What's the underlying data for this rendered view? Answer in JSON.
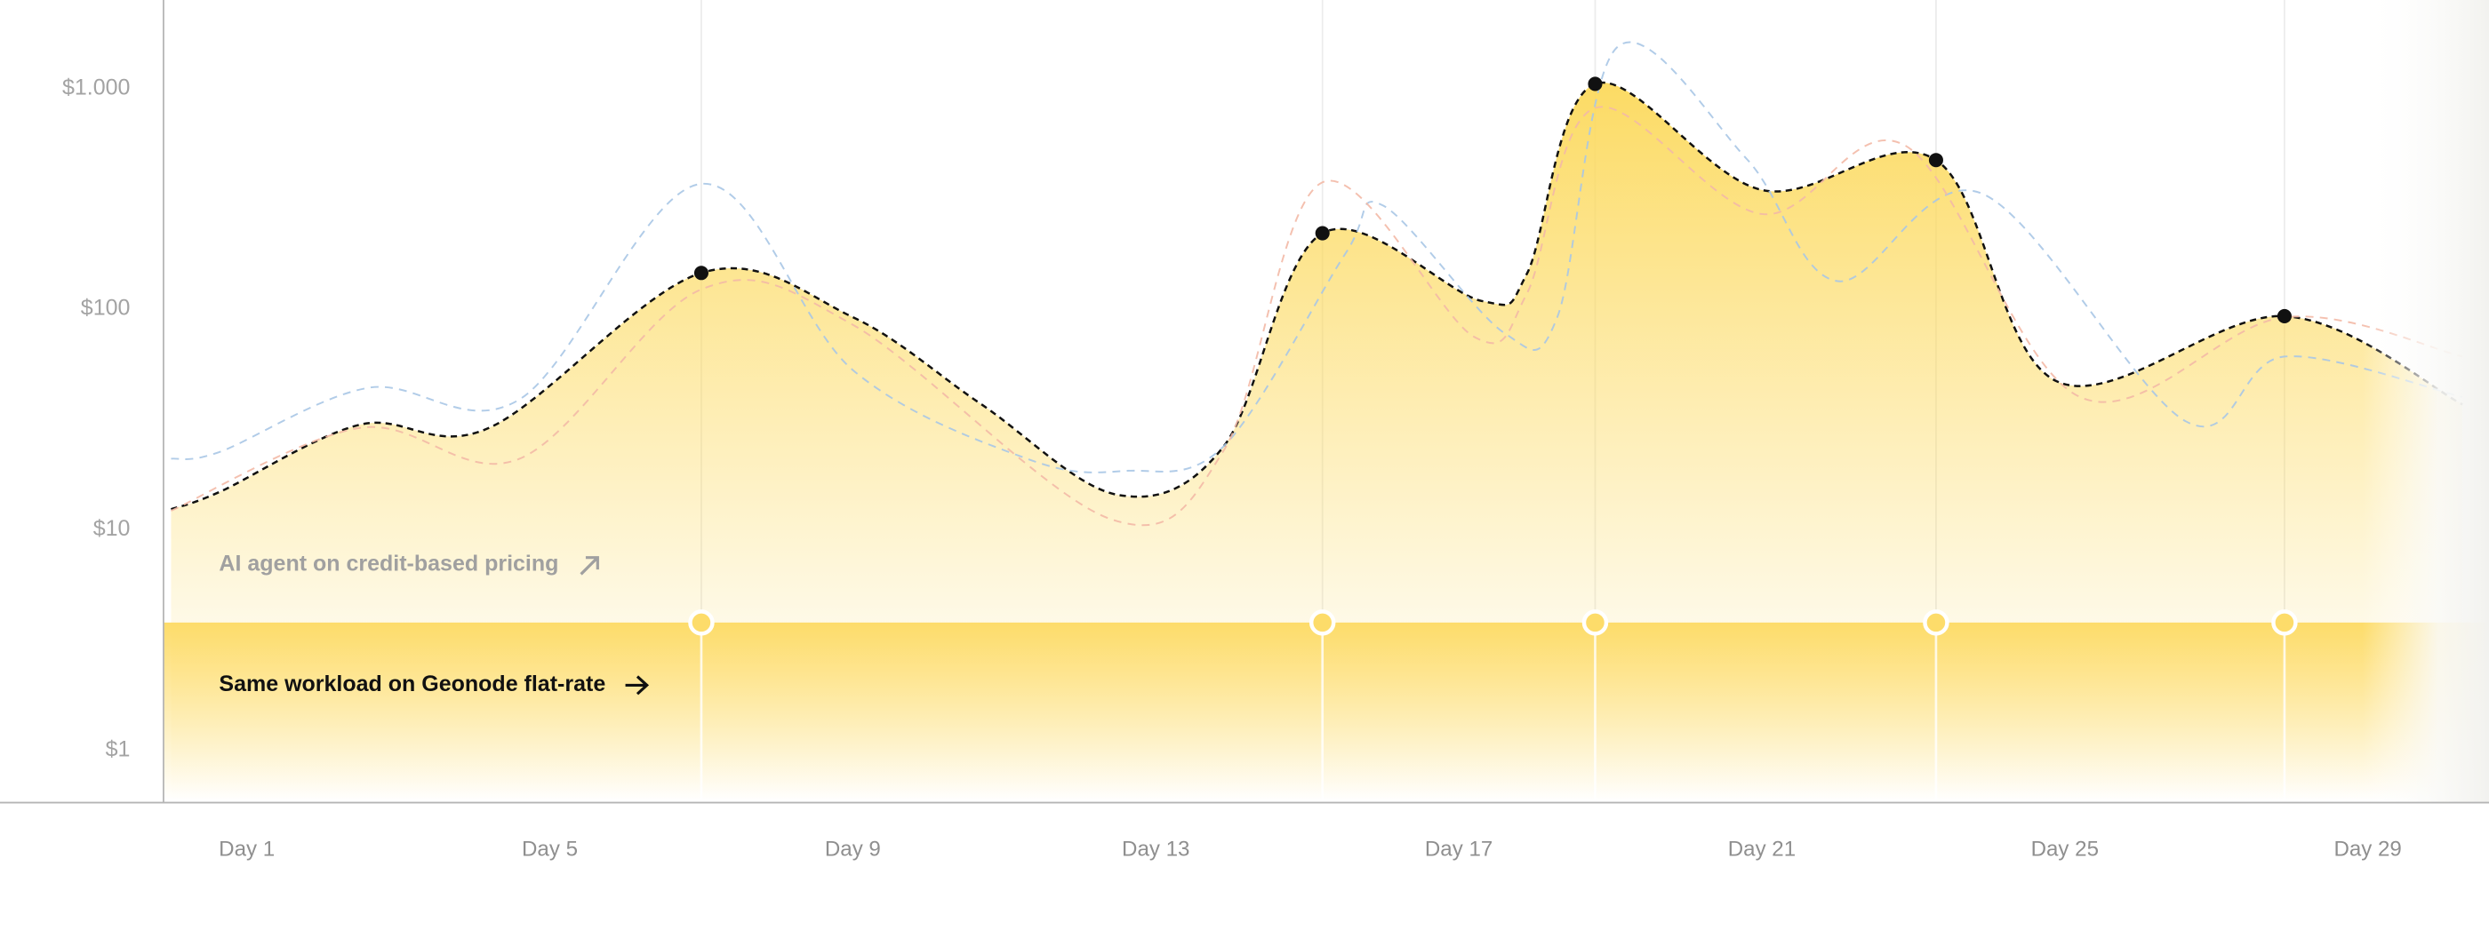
{
  "chart_data": {
    "type": "line",
    "log_scale": true,
    "xlim": [
      -0.1,
      30.6
    ],
    "ylim": [
      0.59,
      2520
    ],
    "xticks": [
      {
        "value": 1,
        "label": "Day 1"
      },
      {
        "value": 5,
        "label": "Day 5"
      },
      {
        "value": 9,
        "label": "Day 9"
      },
      {
        "value": 13,
        "label": "Day 13"
      },
      {
        "value": 17,
        "label": "Day 17"
      },
      {
        "value": 21,
        "label": "Day 21"
      },
      {
        "value": 25,
        "label": "Day 25"
      },
      {
        "value": 29,
        "label": "Day 29"
      }
    ],
    "yticks": [
      {
        "value": 1,
        "label": "$1"
      },
      {
        "value": 10,
        "label": "$10"
      },
      {
        "value": 100,
        "label": "$100"
      },
      {
        "value": 1000,
        "label": "$1.000"
      }
    ],
    "series": [
      {
        "name": "AI agent on credit-based pricing",
        "color": "#111111",
        "area_color": "#fcd95c",
        "x": [
          0,
          0.65,
          2.5,
          4.2,
          7,
          9,
          10.7,
          12.5,
          13.9,
          15.2,
          17.3,
          17.9,
          18.8,
          21,
          23.3,
          24.9,
          27.9,
          30.25
        ],
        "values": [
          12.4,
          14.9,
          30,
          29,
          146,
          92,
          37,
          14.4,
          24,
          221,
          109,
          145,
          1050,
          347,
          474,
          47,
          93,
          37
        ]
      },
      {
        "color": "#a9c6e6",
        "x": [
          0,
          0.65,
          2.6,
          4.6,
          7,
          9,
          11.3,
          12.6,
          13.9,
          15.5,
          16,
          17.6,
          18.3,
          19.1,
          20.8,
          22,
          23.9,
          26.6,
          27.9,
          30.25
        ],
        "values": [
          21,
          22.6,
          44,
          39,
          370,
          53,
          21,
          18.5,
          24,
          178,
          295,
          78,
          92,
          1550,
          480,
          134,
          335,
          31,
          61,
          40
        ]
      },
      {
        "color": "#f3b9a6",
        "x": [
          0,
          2.5,
          4.6,
          7,
          9,
          12.4,
          13.9,
          15.2,
          17.2,
          17.9,
          18.8,
          21,
          22.9,
          25.2,
          27.9,
          30.25
        ],
        "values": [
          12.2,
          29,
          21,
          123,
          85,
          11.2,
          23,
          376,
          75,
          118,
          817,
          270,
          550,
          40,
          92,
          61
        ]
      },
      {
        "name": "Same workload on Geonode flat-rate",
        "color": "#fddc6a",
        "x": [
          7,
          15.2,
          18.8,
          23.3,
          27.9
        ],
        "values": [
          3.8,
          3.8,
          3.8,
          3.8,
          3.8
        ]
      }
    ]
  }
}
